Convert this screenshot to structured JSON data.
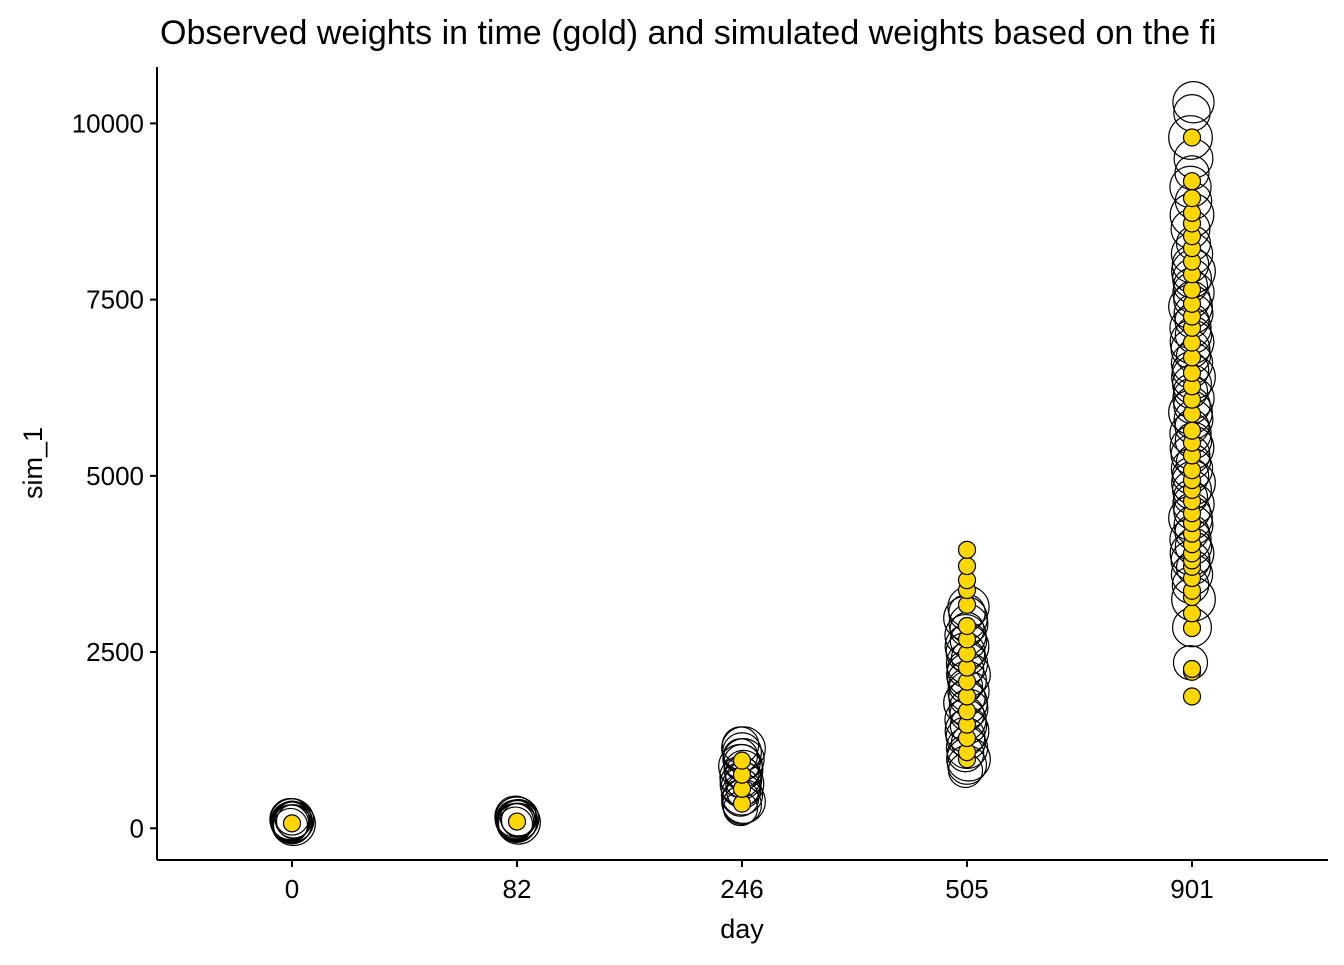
{
  "chart_data": {
    "type": "scatter",
    "title": "Observed weights in time (gold) and simulated weights based on the fi",
    "xlabel": "day",
    "ylabel": "sim_1",
    "x_categories": [
      "0",
      "82",
      "246",
      "505",
      "901"
    ],
    "y_ticks": [
      0,
      2500,
      5000,
      7500,
      10000
    ],
    "y_tick_labels": [
      "0",
      "2500",
      "5000",
      "7500",
      "10000"
    ],
    "ylim": [
      -450,
      10800
    ],
    "grid": false,
    "legend": "none",
    "colors": {
      "observed_fill": "#FFD700",
      "marker_outline": "#000000",
      "axis": "#000000"
    },
    "series": [
      {
        "kind": "simulated",
        "marker": "open-circle",
        "values": {
          "0": [
            40,
            55,
            65,
            75,
            85,
            95,
            100,
            110,
            120,
            130,
            145
          ],
          "82": [
            60,
            75,
            85,
            95,
            105,
            115,
            125,
            135,
            150,
            165
          ],
          "246": [
            280,
            330,
            380,
            430,
            480,
            530,
            580,
            630,
            680,
            730,
            780,
            830,
            880,
            930,
            980,
            1030,
            1080,
            1130,
            1180
          ],
          "505": [
            820,
            900,
            980,
            1060,
            1140,
            1220,
            1300,
            1380,
            1460,
            1540,
            1620,
            1700,
            1780,
            1860,
            1940,
            2020,
            2100,
            2180,
            2260,
            2340,
            2420,
            2500,
            2580,
            2660,
            2740,
            2820,
            2900,
            2980,
            3060,
            3140
          ],
          "901": [
            2350,
            2850,
            3250,
            3450,
            3600,
            3700,
            3800,
            3900,
            4000,
            4100,
            4200,
            4300,
            4400,
            4500,
            4600,
            4700,
            4800,
            4900,
            5000,
            5100,
            5200,
            5300,
            5400,
            5500,
            5600,
            5700,
            5800,
            5900,
            6000,
            6100,
            6200,
            6300,
            6400,
            6500,
            6600,
            6700,
            6800,
            6900,
            7000,
            7100,
            7200,
            7300,
            7400,
            7500,
            7600,
            7700,
            7800,
            7900,
            8000,
            8150,
            8300,
            8500,
            8700,
            8900,
            9100,
            9300,
            9500,
            9800,
            10150,
            10300
          ]
        }
      },
      {
        "kind": "observed",
        "marker": "filled-circle",
        "values": {
          "0": [
            70
          ],
          "82": [
            95
          ],
          "246": [
            350,
            560,
            760,
            960
          ],
          "505": [
            980,
            1080,
            1280,
            1470,
            1660,
            1870,
            2080,
            2280,
            2480,
            2680,
            2870,
            3170,
            3380,
            3520,
            3720,
            3950
          ],
          "901": [
            1870,
            2220,
            2260,
            2840,
            3050,
            3280,
            3370,
            3550,
            3710,
            3800,
            3900,
            4030,
            4180,
            4330,
            4470,
            4640,
            4800,
            4940,
            5080,
            5290,
            5470,
            5640,
            5880,
            6080,
            6270,
            6460,
            6680,
            6890,
            7100,
            7260,
            7440,
            7640,
            7860,
            8040,
            8230,
            8400,
            8580,
            8730,
            8940,
            9180,
            9800
          ]
        }
      }
    ]
  }
}
